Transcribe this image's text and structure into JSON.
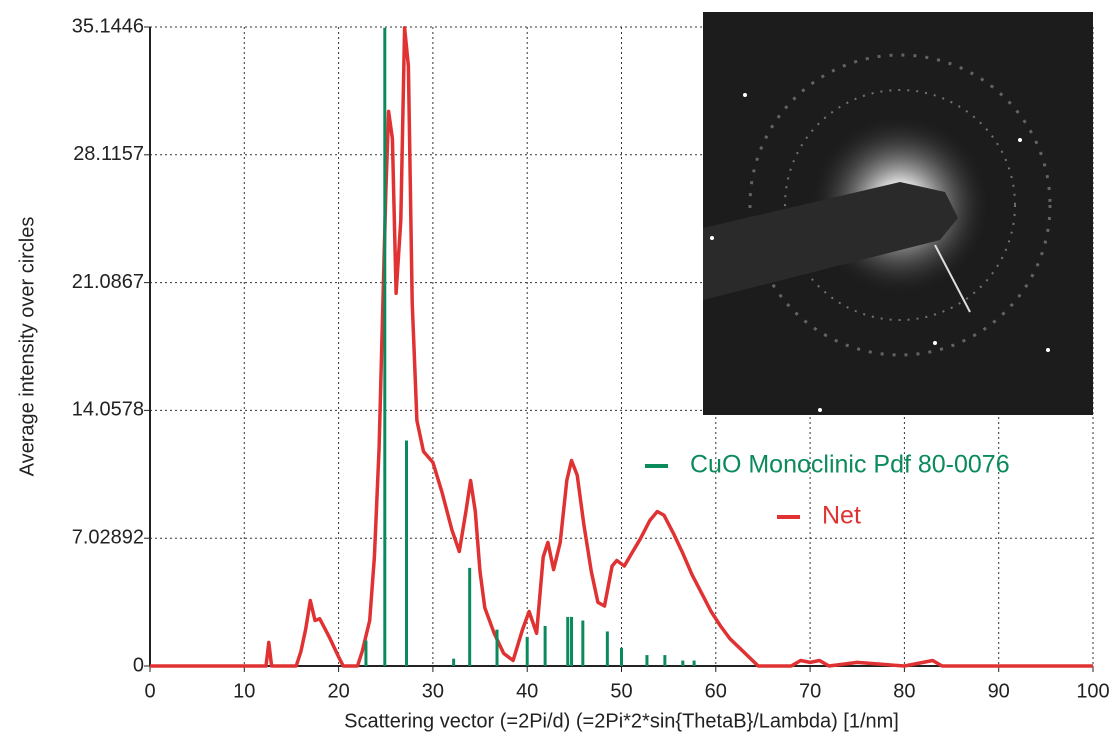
{
  "chart_data": {
    "type": "line",
    "x_label": "Scattering vector (=2Pi/d) (=2Pi*2*sin{ThetaB}/Lambda) [1/nm]",
    "y_label": "Average intensity over circles",
    "xlim": [
      0,
      100
    ],
    "xticks": [
      0,
      10,
      20,
      30,
      40,
      50,
      60,
      70,
      80,
      90,
      100
    ],
    "ylim": [
      0,
      35.1446
    ],
    "yticks": [
      0,
      7.02892,
      14.0578,
      21.0867,
      28.1157,
      35.1446
    ],
    "grid": true,
    "series": [
      {
        "name": "CuO Monoclinic Pdf 80-0076",
        "color": "#0b8a5c",
        "style": "stem",
        "x": [
          22.9,
          24.9,
          27.2,
          32.2,
          33.9,
          36.8,
          40.0,
          41.9,
          44.3,
          44.7,
          45.9,
          48.5,
          50.0,
          52.7,
          54.6,
          56.5,
          57.7
        ],
        "values": [
          1.4,
          35.1,
          12.4,
          0.4,
          5.4,
          2.0,
          1.6,
          2.2,
          2.7,
          2.7,
          2.5,
          1.9,
          1.0,
          0.6,
          0.6,
          0.3,
          0.3
        ]
      },
      {
        "name": "Net",
        "color": "#e03232",
        "style": "line",
        "x": [
          0,
          12.3,
          12.6,
          12.9,
          15.5,
          16,
          16.5,
          17,
          17.5,
          18,
          19,
          20,
          20.5,
          22,
          22.5,
          23.3,
          23.8,
          24.3,
          24.7,
          25,
          25.3,
          25.7,
          26.1,
          26.6,
          27,
          27.4,
          27.8,
          28.3,
          29,
          30,
          31,
          32,
          32.8,
          33.5,
          34,
          34.5,
          35,
          35.5,
          36.5,
          37.5,
          38.5,
          39.5,
          40.2,
          41,
          41.7,
          42.2,
          42.8,
          43.5,
          44.2,
          44.7,
          45.3,
          46,
          46.8,
          47.5,
          48.2,
          49,
          49.5,
          50.3,
          51.2,
          52,
          53,
          53.8,
          54.5,
          55.5,
          56.5,
          57.5,
          58.5,
          59.5,
          60.5,
          61.5,
          62.5,
          63.5,
          64.5,
          68,
          69,
          70,
          71,
          72,
          75,
          80,
          83,
          84,
          100
        ],
        "values": [
          0,
          0,
          1.3,
          0,
          0,
          0.8,
          2.0,
          3.6,
          2.5,
          2.6,
          1.6,
          0.5,
          0,
          0,
          0.8,
          2.5,
          6,
          12,
          20,
          26,
          30.5,
          29,
          20.5,
          24.5,
          35.1,
          33,
          20,
          13.5,
          11.8,
          11.2,
          9.5,
          7.5,
          6.3,
          8.5,
          10.2,
          8.5,
          5.2,
          3.2,
          1.8,
          0.7,
          0.3,
          2,
          3,
          1.8,
          6,
          6.8,
          5.3,
          6.8,
          10.2,
          11.3,
          10.5,
          7.8,
          5.2,
          3.5,
          3.3,
          5.5,
          5.8,
          5.5,
          6.3,
          7.0,
          8.0,
          8.5,
          8.3,
          7.3,
          6.2,
          5.0,
          4.0,
          3.0,
          2.2,
          1.5,
          1.0,
          0.5,
          0,
          0,
          0.3,
          0.2,
          0.3,
          0,
          0.2,
          0,
          0.3,
          0,
          0
        ]
      }
    ]
  }
}
